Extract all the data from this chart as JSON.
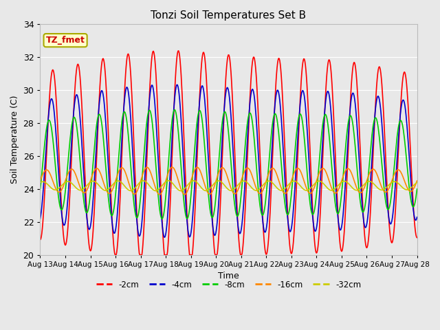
{
  "title": "Tonzi Soil Temperatures Set B",
  "xlabel": "Time",
  "ylabel": "Soil Temperature (C)",
  "ylim": [
    20,
    34
  ],
  "annotation_text": "TZ_fmet",
  "annotation_bg": "#ffffcc",
  "annotation_edge": "#aaaa00",
  "annotation_textcolor": "#cc0000",
  "background_color": "#e8e8e8",
  "plot_bg": "#e8e8e8",
  "grid_color": "#ffffff",
  "line_colors": [
    "#ff0000",
    "#0000cc",
    "#00cc00",
    "#ff8800",
    "#cccc00"
  ],
  "line_labels": [
    "-2cm",
    "-4cm",
    "-8cm",
    "-16cm",
    "-32cm"
  ],
  "line_width": 1.2,
  "xtick_labels": [
    "Aug 13",
    "Aug 14",
    "Aug 15",
    "Aug 16",
    "Aug 17",
    "Aug 18",
    "Aug 19",
    "Aug 20",
    "Aug 21",
    "Aug 22",
    "Aug 23",
    "Aug 24",
    "Aug 25",
    "Aug 26",
    "Aug 27",
    "Aug 28"
  ],
  "figsize": [
    6.4,
    4.8
  ],
  "dpi": 100
}
